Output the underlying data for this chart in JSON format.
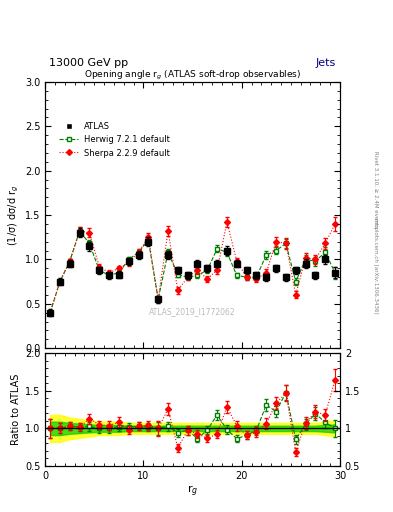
{
  "title_top": "13000 GeV pp",
  "title_right": "Jets",
  "plot_title": "Opening angle r$_g$ (ATLAS soft-drop observables)",
  "xlabel": "r$_g$",
  "ylabel_main": "(1/σ) dσ/d r$_g$",
  "ylabel_ratio": "Ratio to ATLAS",
  "watermark": "ATLAS_2019_I1772062",
  "right_label_top": "Rivet 3.1.10, ≥ 2.4M events",
  "right_label_bottom": "mcplots.cern.ch [arXiv:1306.3436]",
  "xlim": [
    0,
    30
  ],
  "ylim_main": [
    0,
    3
  ],
  "ylim_ratio": [
    0.5,
    2
  ],
  "x": [
    0.5,
    1.5,
    2.5,
    3.5,
    4.5,
    5.5,
    6.5,
    7.5,
    8.5,
    9.5,
    10.5,
    11.5,
    12.5,
    13.5,
    14.5,
    15.5,
    16.5,
    17.5,
    18.5,
    19.5,
    20.5,
    21.5,
    22.5,
    23.5,
    24.5,
    25.5,
    26.5,
    27.5,
    28.5,
    29.5
  ],
  "atlas_y": [
    0.4,
    0.75,
    0.95,
    1.3,
    1.15,
    0.88,
    0.82,
    0.83,
    0.98,
    1.05,
    1.2,
    0.55,
    1.05,
    0.88,
    0.82,
    0.95,
    0.9,
    0.95,
    1.1,
    0.95,
    0.88,
    0.82,
    0.8,
    0.9,
    0.8,
    0.88,
    0.95,
    0.82,
    1.0,
    0.85
  ],
  "atlas_yerr": [
    0.04,
    0.04,
    0.04,
    0.05,
    0.05,
    0.04,
    0.04,
    0.04,
    0.04,
    0.04,
    0.05,
    0.04,
    0.05,
    0.04,
    0.04,
    0.04,
    0.04,
    0.04,
    0.05,
    0.04,
    0.04,
    0.04,
    0.04,
    0.04,
    0.04,
    0.04,
    0.05,
    0.04,
    0.05,
    0.06
  ],
  "herwig_y": [
    0.4,
    0.75,
    0.98,
    1.32,
    1.18,
    0.88,
    0.82,
    0.85,
    1.0,
    1.08,
    1.22,
    0.55,
    1.08,
    0.83,
    0.8,
    0.82,
    0.88,
    1.12,
    1.08,
    0.82,
    0.8,
    0.8,
    1.05,
    1.1,
    1.18,
    0.75,
    1.0,
    0.98,
    1.08,
    0.85
  ],
  "herwig_yerr": [
    0.03,
    0.03,
    0.03,
    0.04,
    0.04,
    0.03,
    0.03,
    0.03,
    0.03,
    0.04,
    0.04,
    0.03,
    0.04,
    0.03,
    0.03,
    0.03,
    0.03,
    0.04,
    0.04,
    0.03,
    0.03,
    0.03,
    0.04,
    0.04,
    0.05,
    0.04,
    0.05,
    0.05,
    0.06,
    0.07
  ],
  "sherpa_y": [
    0.4,
    0.75,
    0.98,
    1.32,
    1.3,
    0.92,
    0.85,
    0.9,
    0.96,
    1.08,
    1.25,
    0.55,
    1.32,
    0.65,
    0.8,
    0.88,
    0.78,
    0.88,
    1.42,
    0.98,
    0.8,
    0.78,
    0.85,
    1.2,
    1.18,
    0.6,
    1.02,
    1.0,
    1.18,
    1.4
  ],
  "sherpa_yerr": [
    0.03,
    0.03,
    0.03,
    0.04,
    0.05,
    0.03,
    0.03,
    0.03,
    0.03,
    0.04,
    0.05,
    0.04,
    0.06,
    0.04,
    0.03,
    0.04,
    0.03,
    0.04,
    0.06,
    0.04,
    0.03,
    0.04,
    0.04,
    0.05,
    0.06,
    0.04,
    0.05,
    0.05,
    0.06,
    0.08
  ],
  "atlas_color": "#000000",
  "herwig_color": "#008000",
  "sherpa_color": "#ff0000",
  "band_yellow": "#ffff00",
  "band_green": "#00cc00",
  "atlas_uncertainty_band": [
    0.1,
    0.1,
    0.08,
    0.07,
    0.06,
    0.05,
    0.05,
    0.05,
    0.04,
    0.04,
    0.04,
    0.04,
    0.04,
    0.04,
    0.04,
    0.04,
    0.04,
    0.04,
    0.04,
    0.04,
    0.04,
    0.04,
    0.04,
    0.04,
    0.04,
    0.04,
    0.04,
    0.04,
    0.05,
    0.06
  ]
}
